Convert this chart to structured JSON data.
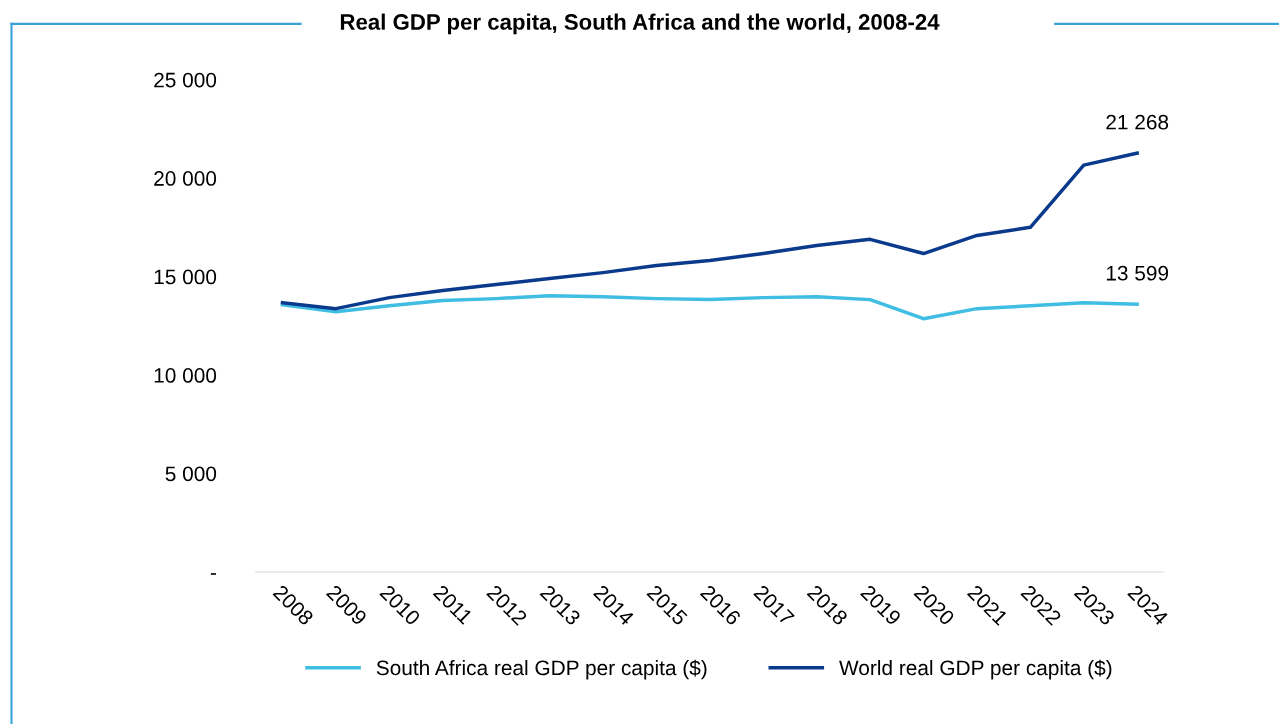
{
  "chart_data": {
    "type": "line",
    "title": "Real GDP per capita, South Africa and the world, 2008-24",
    "categories": [
      "2008",
      "2009",
      "2010",
      "2011",
      "2012",
      "2013",
      "2014",
      "2015",
      "2016",
      "2017",
      "2018",
      "2019",
      "2020",
      "2021",
      "2022",
      "2023",
      "2024"
    ],
    "series": [
      {
        "name": "South Africa real GDP per capita ($)",
        "color": "#3fbde3",
        "values": [
          13570,
          13210,
          13520,
          13780,
          13880,
          14030,
          13980,
          13880,
          13830,
          13930,
          13980,
          13830,
          12860,
          13370,
          13520,
          13670,
          13599
        ],
        "value_labels": [
          null,
          null,
          null,
          null,
          null,
          null,
          null,
          null,
          null,
          null,
          null,
          null,
          null,
          null,
          null,
          null,
          "13 599"
        ]
      },
      {
        "name": "World real GDP per capita ($)",
        "color": "#0a3a8c",
        "values": [
          13670,
          13370,
          13930,
          14290,
          14600,
          14900,
          15200,
          15560,
          15820,
          16170,
          16580,
          16890,
          16170,
          17090,
          17500,
          20660,
          21268
        ],
        "value_labels": [
          null,
          null,
          null,
          null,
          null,
          null,
          null,
          null,
          null,
          null,
          null,
          null,
          null,
          null,
          null,
          null,
          "21 268"
        ]
      }
    ],
    "ylim": [
      0,
      25000
    ],
    "yticks": [
      {
        "value": 0,
        "label": "-"
      },
      {
        "value": 5000,
        "label": "5 000"
      },
      {
        "value": 10000,
        "label": "10 000"
      },
      {
        "value": 15000,
        "label": "15 000"
      },
      {
        "value": 20000,
        "label": "20 000"
      },
      {
        "value": 25000,
        "label": "25 000"
      }
    ],
    "grid": false,
    "legend": "bottom",
    "marker": "none",
    "line_style": "solid"
  }
}
